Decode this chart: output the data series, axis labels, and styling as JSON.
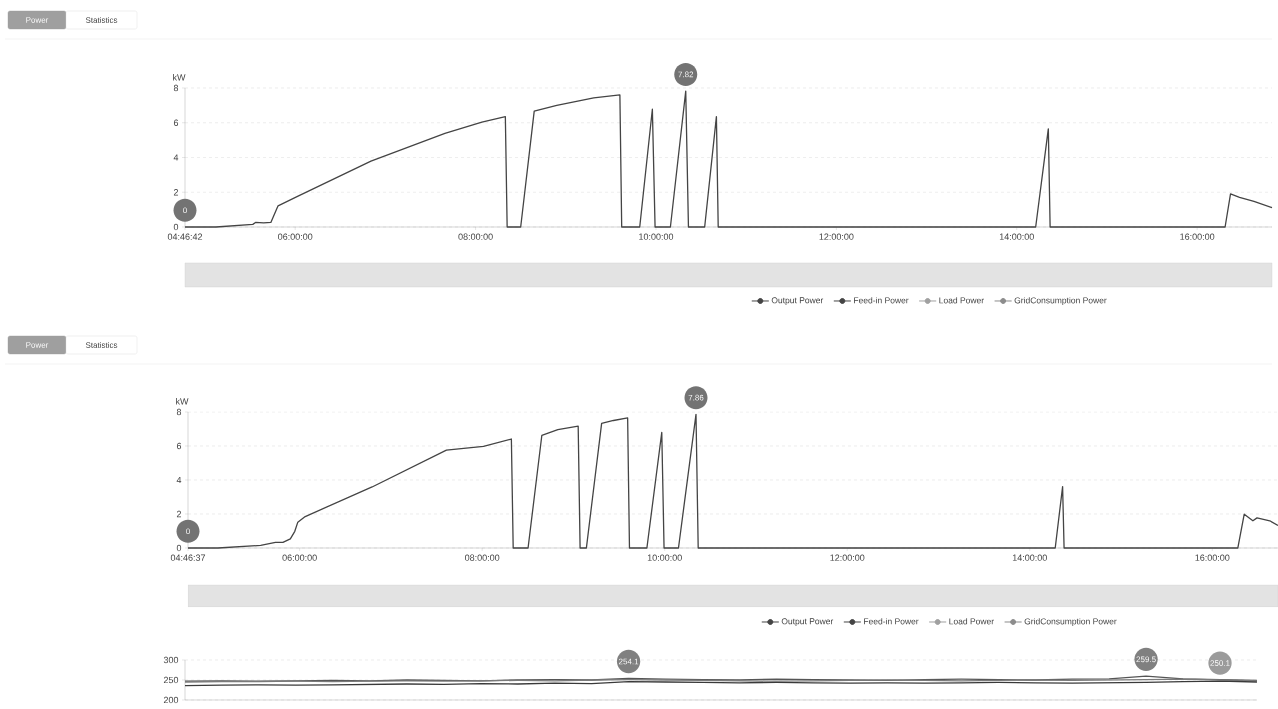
{
  "chart_data": [
    {
      "type": "other",
      "annotations": [
        "Power",
        "Statistics"
      ]
    },
    {
      "type": "line",
      "ylabel": "kW",
      "xlim": [
        4.7783,
        16.83
      ],
      "ylim": [
        0,
        8
      ],
      "xticks": [
        {
          "value": 4.7783,
          "label": "04:46:42"
        },
        {
          "value": 6,
          "label": "06:00:00"
        },
        {
          "value": 8,
          "label": "08:00:00"
        },
        {
          "value": 10,
          "label": "10:00:00"
        },
        {
          "value": 12,
          "label": "12:00:00"
        },
        {
          "value": 14,
          "label": "14:00:00"
        },
        {
          "value": 16,
          "label": "16:00:00"
        }
      ],
      "yticks": [
        0,
        2,
        4,
        6,
        8
      ],
      "grid": "y",
      "legend": "bottom",
      "series": [
        {
          "name": "Output Power",
          "color": "#444444",
          "x": [
            4.7783,
            5.121,
            5.53,
            5.56,
            5.65,
            5.73,
            5.81,
            6.02,
            6.84,
            7.66,
            8.07,
            8.33,
            8.35,
            8.5,
            8.65,
            8.9,
            9.31,
            9.6,
            9.62,
            9.82,
            9.96,
            9.99,
            10.16,
            10.33,
            10.36,
            10.54,
            10.67,
            10.69,
            14.21,
            14.35,
            14.37,
            16.31,
            16.37,
            16.47,
            16.63,
            16.83
          ],
          "values": [
            0,
            0,
            0.15,
            0.26,
            0.24,
            0.26,
            1.22,
            1.75,
            3.79,
            5.39,
            6.03,
            6.35,
            0,
            0,
            6.67,
            7.0,
            7.43,
            7.6,
            0,
            0,
            6.78,
            0,
            0,
            7.82,
            0,
            0,
            6.35,
            0,
            0,
            5.65,
            0,
            0,
            1.9,
            1.71,
            1.48,
            1.11
          ],
          "value_labels": [
            "0",
            null,
            null,
            null,
            null,
            null,
            null,
            null,
            null,
            null,
            null,
            null,
            null,
            null,
            null,
            null,
            null,
            null,
            null,
            null,
            null,
            null,
            null,
            "7.82",
            null,
            null,
            null,
            null,
            null,
            null,
            null,
            null,
            null,
            null,
            null,
            null
          ]
        },
        {
          "name": "Feed-in Power",
          "color": "#444444"
        },
        {
          "name": "Load Power",
          "color": "#a0a0a0"
        },
        {
          "name": "GridConsumption Power",
          "color": "#8c8c8c"
        }
      ]
    },
    {
      "type": "other",
      "annotations": [
        "Power",
        "Statistics"
      ]
    },
    {
      "type": "line",
      "ylabel": "kW",
      "xlim": [
        4.7769,
        16.72
      ],
      "ylim": [
        0,
        8
      ],
      "xticks": [
        {
          "value": 4.7769,
          "label": "04:46:37"
        },
        {
          "value": 6,
          "label": "06:00:00"
        },
        {
          "value": 8,
          "label": "08:00:00"
        },
        {
          "value": 10,
          "label": "10:00:00"
        },
        {
          "value": 12,
          "label": "12:00:00"
        },
        {
          "value": 14,
          "label": "14:00:00"
        },
        {
          "value": 16,
          "label": "16:00:00"
        }
      ],
      "yticks": [
        0,
        2,
        4,
        6,
        8
      ],
      "grid": "y",
      "legend": "bottom",
      "series": [
        {
          "name": "Output Power",
          "color": "#444444",
          "x": [
            4.7769,
            5.105,
            5.573,
            5.735,
            5.817,
            5.898,
            5.947,
            5.98,
            6.061,
            6.794,
            7.608,
            8.015,
            8.32,
            8.34,
            8.503,
            8.654,
            8.829,
            9.052,
            9.073,
            9.142,
            9.309,
            9.439,
            9.594,
            9.614,
            9.805,
            9.968,
            9.993,
            10.151,
            10.343,
            10.367,
            14.279,
            14.36,
            14.376,
            16.28,
            16.35,
            16.445,
            16.49,
            16.63,
            16.72
          ],
          "values": [
            0,
            0,
            0.15,
            0.33,
            0.33,
            0.54,
            0.98,
            1.52,
            1.85,
            3.59,
            5.76,
            5.98,
            6.41,
            0,
            0,
            6.63,
            6.96,
            7.17,
            0,
            0,
            7.33,
            7.5,
            7.65,
            0,
            0,
            6.8,
            0,
            0,
            7.86,
            0,
            0,
            3.61,
            0,
            0,
            1.99,
            1.6,
            1.77,
            1.6,
            1.32
          ],
          "value_labels": [
            "0",
            null,
            null,
            null,
            null,
            null,
            null,
            null,
            null,
            null,
            null,
            null,
            null,
            null,
            null,
            null,
            null,
            null,
            null,
            null,
            null,
            null,
            null,
            null,
            null,
            null,
            null,
            null,
            "7.86",
            null,
            null,
            null,
            null,
            null,
            null,
            null,
            null,
            null,
            null
          ]
        },
        {
          "name": "Feed-in Power",
          "color": "#444444"
        },
        {
          "name": "Load Power",
          "color": "#a0a0a0"
        },
        {
          "name": "GridConsumption Power",
          "color": "#8c8c8c"
        }
      ]
    },
    {
      "type": "line",
      "categories": [
        null,
        null,
        null,
        null,
        null,
        null,
        null,
        null,
        null,
        null,
        null,
        null,
        null,
        null,
        null,
        null,
        null,
        null,
        null,
        null,
        null,
        null,
        null,
        null,
        null,
        null,
        null,
        null,
        null,
        null
      ],
      "ylim": [
        200,
        300
      ],
      "yticks": [
        200,
        250,
        300
      ],
      "grid": "y",
      "tick_labels": "y",
      "series": [
        {
          "color": "#555555",
          "values": [
            247,
            248,
            247,
            248,
            249,
            248,
            250,
            249,
            248,
            250,
            251,
            250,
            254.1,
            252,
            251,
            250,
            252,
            251,
            250,
            249,
            251,
            252,
            251,
            250,
            252,
            253,
            259.5,
            253,
            251,
            249
          ],
          "value_labels": [
            null,
            null,
            null,
            null,
            null,
            null,
            null,
            null,
            null,
            null,
            null,
            null,
            "254.1",
            null,
            null,
            null,
            null,
            null,
            null,
            null,
            null,
            null,
            null,
            null,
            null,
            null,
            "259.5",
            null,
            null,
            null
          ]
        },
        {
          "color": "#7a7a7a",
          "values": [
            245,
            246,
            246,
            247,
            246,
            247,
            248,
            247,
            248,
            249,
            248,
            250,
            251,
            250,
            249,
            248,
            247,
            248,
            249,
            250,
            249,
            248,
            249,
            250,
            249,
            250,
            251,
            252,
            250.1,
            248
          ],
          "value_labels": [
            null,
            null,
            null,
            null,
            null,
            null,
            null,
            null,
            null,
            null,
            null,
            null,
            null,
            null,
            null,
            null,
            null,
            null,
            null,
            null,
            null,
            null,
            null,
            null,
            null,
            null,
            null,
            null,
            "250.1",
            null
          ]
        },
        {
          "color": "#3a3a3a",
          "values": [
            236,
            237,
            238,
            237,
            238,
            239,
            240,
            239,
            241,
            240,
            242,
            241,
            246,
            245,
            244,
            243,
            244,
            243,
            242,
            243,
            242,
            243,
            244,
            243,
            242,
            243,
            244,
            246,
            247,
            245
          ]
        }
      ]
    }
  ]
}
